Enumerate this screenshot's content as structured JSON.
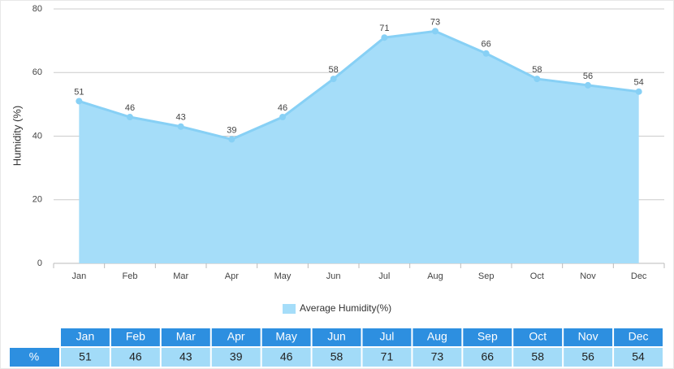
{
  "chart_data": {
    "type": "area",
    "y_label": "Humidity (%)",
    "categories": [
      "Jan",
      "Feb",
      "Mar",
      "Apr",
      "May",
      "Jun",
      "Jul",
      "Aug",
      "Sep",
      "Oct",
      "Nov",
      "Dec"
    ],
    "series": [
      {
        "name": "Average Humidity(%)",
        "color": "#87d0f5",
        "fill": "#a5ddf9",
        "values": [
          51,
          46,
          43,
          39,
          46,
          58,
          71,
          73,
          66,
          58,
          56,
          54
        ]
      }
    ],
    "ylim": [
      0,
      80
    ],
    "yticks": [
      0,
      20,
      40,
      60,
      80
    ],
    "grid": true
  },
  "table": {
    "row_label": "%"
  }
}
